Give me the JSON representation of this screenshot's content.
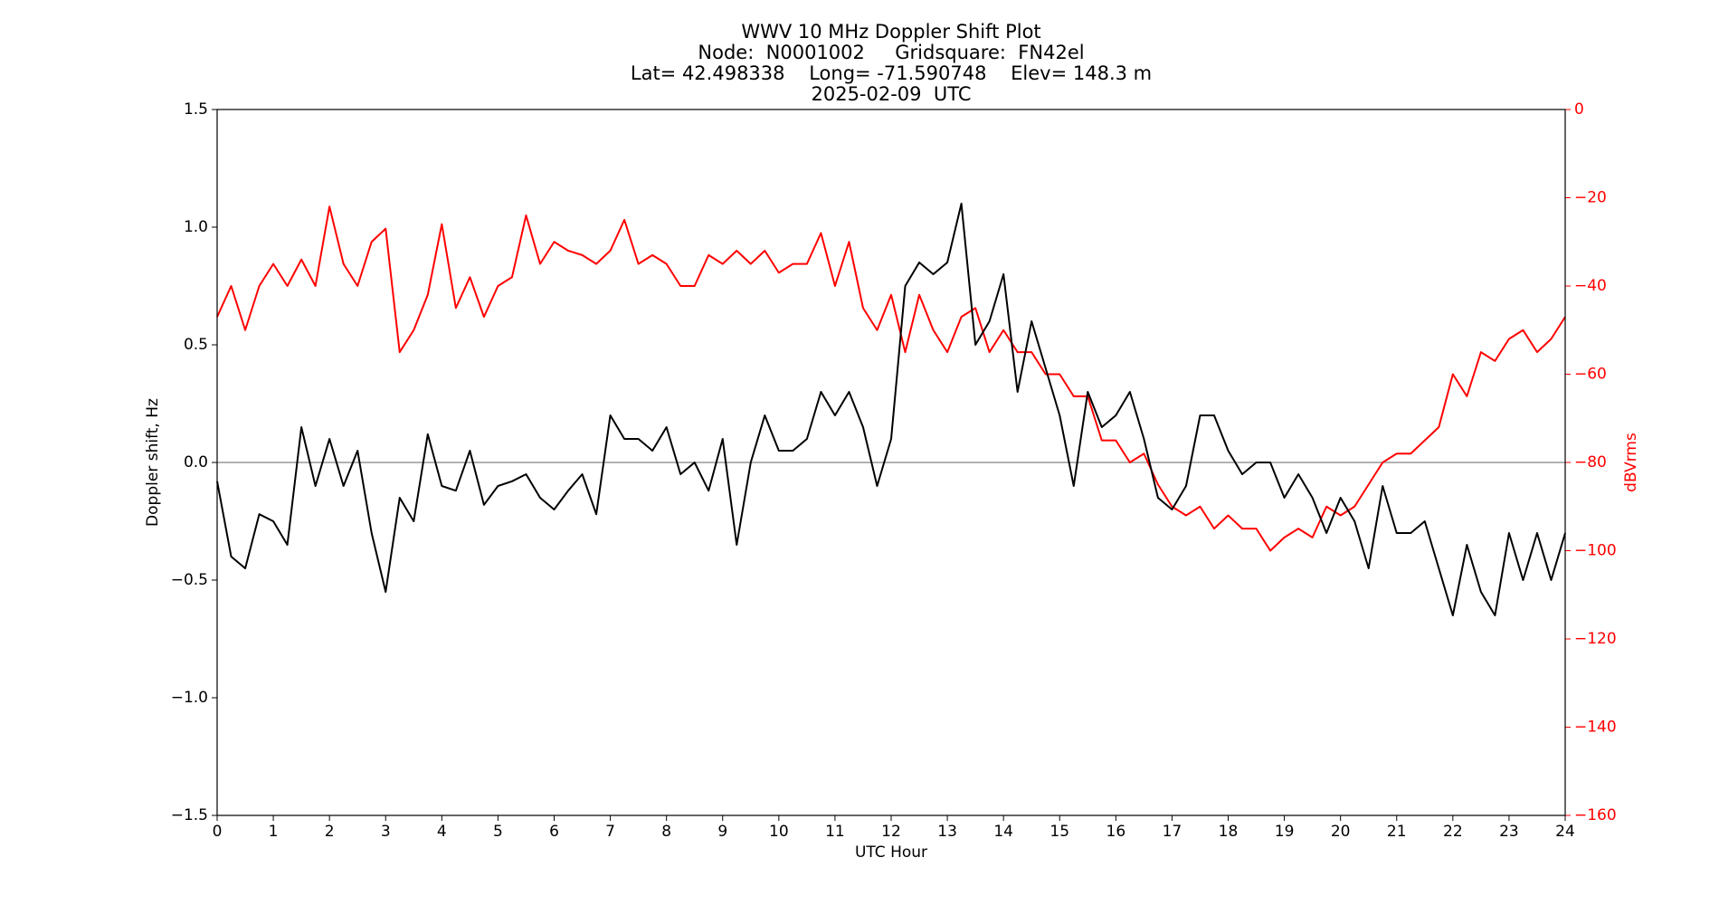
{
  "chart_data": {
    "type": "line",
    "title": [
      "WWV 10 MHz Doppler Shift Plot",
      "Node:  N0001002     Gridsquare:  FN42el",
      "Lat= 42.498338    Long= -71.590748    Elev= 148.3 m",
      "2025-02-09  UTC"
    ],
    "xlabel": "UTC Hour",
    "ylabel": "Doppler shift, Hz",
    "y2label": "dBVrms",
    "x": [
      0,
      0.25,
      0.5,
      0.75,
      1,
      1.25,
      1.5,
      1.75,
      2,
      2.25,
      2.5,
      2.75,
      3,
      3.25,
      3.5,
      3.75,
      4,
      4.25,
      4.5,
      4.75,
      5,
      5.25,
      5.5,
      5.75,
      6,
      6.25,
      6.5,
      6.75,
      7,
      7.25,
      7.5,
      7.75,
      8,
      8.25,
      8.5,
      8.75,
      9,
      9.25,
      9.5,
      9.75,
      10,
      10.25,
      10.5,
      10.75,
      11,
      11.25,
      11.5,
      11.75,
      12,
      12.25,
      12.5,
      12.75,
      13,
      13.25,
      13.5,
      13.75,
      14,
      14.25,
      14.5,
      14.75,
      15,
      15.25,
      15.5,
      15.75,
      16,
      16.25,
      16.5,
      16.75,
      17,
      17.25,
      17.5,
      17.75,
      18,
      18.25,
      18.5,
      18.75,
      19,
      19.25,
      19.5,
      19.75,
      20,
      20.25,
      20.5,
      20.75,
      21,
      21.25,
      21.5,
      21.75,
      22,
      22.25,
      22.5,
      22.75,
      23,
      23.25,
      23.5,
      23.75,
      24
    ],
    "series": [
      {
        "name": "Doppler shift",
        "color": "#000000",
        "axis": "y",
        "values": [
          -0.08,
          -0.4,
          -0.45,
          -0.22,
          -0.25,
          -0.35,
          0.15,
          -0.1,
          0.1,
          -0.1,
          0.05,
          -0.3,
          -0.55,
          -0.15,
          -0.25,
          0.12,
          -0.1,
          -0.12,
          0.05,
          -0.18,
          -0.1,
          -0.08,
          -0.05,
          -0.15,
          -0.2,
          -0.12,
          -0.05,
          -0.22,
          0.2,
          0.1,
          0.1,
          0.05,
          0.15,
          -0.05,
          0,
          -0.12,
          0.1,
          -0.35,
          0,
          0.2,
          0.05,
          0.05,
          0.1,
          0.3,
          0.2,
          0.3,
          0.15,
          -0.1,
          0.1,
          0.75,
          0.85,
          0.8,
          0.85,
          1.1,
          0.5,
          0.6,
          0.8,
          0.3,
          0.6,
          0.4,
          0.2,
          -0.1,
          0.3,
          0.15,
          0.2,
          0.3,
          0.1,
          -0.15,
          -0.2,
          -0.1,
          0.2,
          0.2,
          0.05,
          -0.05,
          0,
          0,
          -0.15,
          -0.05,
          -0.15,
          -0.3,
          -0.15,
          -0.25,
          -0.45,
          -0.1,
          -0.3,
          -0.3,
          -0.25,
          -0.45,
          -0.65,
          -0.35,
          -0.55,
          -0.65,
          -0.3,
          -0.5,
          -0.3,
          -0.5,
          -0.3
        ]
      },
      {
        "name": "dBVrms",
        "color": "#ff0000",
        "axis": "y2",
        "values": [
          -47,
          -40,
          -50,
          -40,
          -35,
          -40,
          -34,
          -40,
          -22,
          -35,
          -40,
          -30,
          -27,
          -55,
          -50,
          -42,
          -26,
          -45,
          -38,
          -47,
          -40,
          -38,
          -24,
          -35,
          -30,
          -32,
          -33,
          -35,
          -32,
          -25,
          -35,
          -33,
          -35,
          -40,
          -40,
          -33,
          -35,
          -32,
          -35,
          -32,
          -37,
          -35,
          -35,
          -28,
          -40,
          -30,
          -45,
          -50,
          -42,
          -55,
          -42,
          -50,
          -55,
          -47,
          -45,
          -55,
          -50,
          -55,
          -55,
          -60,
          -60,
          -65,
          -65,
          -75,
          -75,
          -80,
          -78,
          -85,
          -90,
          -92,
          -90,
          -95,
          -92,
          -95,
          -95,
          -100,
          -97,
          -95,
          -97,
          -90,
          -92,
          -90,
          -85,
          -80,
          -78,
          -78,
          -75,
          -72,
          -60,
          -65,
          -55,
          -57,
          -52,
          -50,
          -55,
          -52,
          -47
        ]
      }
    ],
    "xlim": [
      0,
      24
    ],
    "xticks": [
      0,
      1,
      2,
      3,
      4,
      5,
      6,
      7,
      8,
      9,
      10,
      11,
      12,
      13,
      14,
      15,
      16,
      17,
      18,
      19,
      20,
      21,
      22,
      23,
      24
    ],
    "ylim": [
      -1.5,
      1.5
    ],
    "yticks": [
      {
        "value": -1.5,
        "label": "−1.5"
      },
      {
        "value": -1,
        "label": "−1.0"
      },
      {
        "value": -0.5,
        "label": "−0.5"
      },
      {
        "value": 0,
        "label": "0.0"
      },
      0.5,
      {
        "value": 1,
        "label": "1.0"
      },
      1.5
    ],
    "y2lim": [
      -160,
      0
    ],
    "y2ticks": [
      {
        "value": -160,
        "label": "−160"
      },
      {
        "value": -140,
        "label": "−140"
      },
      {
        "value": -120,
        "label": "−120"
      },
      {
        "value": -100,
        "label": "−100"
      },
      {
        "value": -80,
        "label": "−80"
      },
      {
        "value": -60,
        "label": "−60"
      },
      {
        "value": -40,
        "label": "−40"
      },
      {
        "value": -20,
        "label": "−20"
      },
      0
    ],
    "hline": 0,
    "y2color": "#ff0000"
  }
}
